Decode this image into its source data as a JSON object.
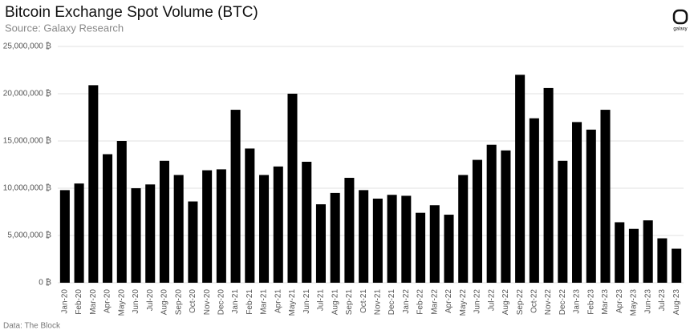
{
  "chart_data": {
    "type": "bar",
    "title": "Bitcoin Exchange Spot Volume (BTC)",
    "subtitle": "Source: Galaxy Research",
    "source_note": "Data: The Block",
    "logo_text": "galaxy",
    "categories": [
      "Jan-20",
      "Feb-20",
      "Mar-20",
      "Apr-20",
      "May-20",
      "Jun-20",
      "Jul-20",
      "Aug-20",
      "Sep-20",
      "Oct-20",
      "Nov-20",
      "Dec-20",
      "Jan-21",
      "Feb-21",
      "Mar-21",
      "Apr-21",
      "May-21",
      "Jun-21",
      "Jul-21",
      "Aug-21",
      "Sep-21",
      "Oct-21",
      "Nov-21",
      "Dec-21",
      "Jan-22",
      "Feb-22",
      "Mar-22",
      "Apr-22",
      "May-22",
      "Jun-22",
      "Jul-22",
      "Aug-22",
      "Sep-22",
      "Oct-22",
      "Nov-22",
      "Dec-22",
      "Jan-23",
      "Feb-23",
      "Mar-23",
      "Apr-23",
      "May-23",
      "Jun-23",
      "Jul-23",
      "Aug-23"
    ],
    "values": [
      9800000,
      10500000,
      20900000,
      13600000,
      15000000,
      10000000,
      10400000,
      12900000,
      11400000,
      8600000,
      11900000,
      12000000,
      18300000,
      14200000,
      11400000,
      12300000,
      20000000,
      12800000,
      8300000,
      9500000,
      11100000,
      9800000,
      8900000,
      9300000,
      9200000,
      7400000,
      8200000,
      7200000,
      11400000,
      13000000,
      14600000,
      14000000,
      22000000,
      17400000,
      20600000,
      12900000,
      17000000,
      16200000,
      18300000,
      6400000,
      5700000,
      6600000,
      4700000,
      3600000
    ],
    "color": "#000000",
    "ylim": [
      0,
      25000000
    ],
    "yticks": [
      {
        "value": 0,
        "label": "0 ₿"
      },
      {
        "value": 5000000,
        "label": "5,000,000 ₿"
      },
      {
        "value": 10000000,
        "label": "10,000,000 ₿"
      },
      {
        "value": 15000000,
        "label": "15,000,000 ₿"
      },
      {
        "value": 20000000,
        "label": "20,000,000 ₿"
      },
      {
        "value": 25000000,
        "label": "25,000,000 ₿"
      }
    ],
    "grid": true
  }
}
